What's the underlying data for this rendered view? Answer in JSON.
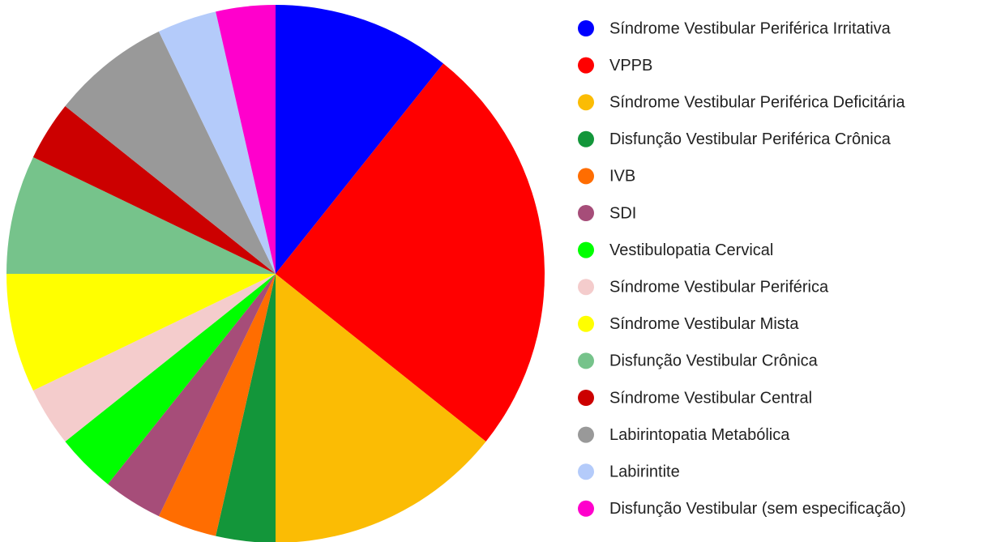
{
  "chart_data": {
    "type": "pie",
    "categories": [
      "Síndrome Vestibular Periférica Irritativa",
      "VPPB",
      "Síndrome Vestibular Periférica Deficitária",
      "Disfunção Vestibular Periférica Crônica",
      "IVB",
      "SDI",
      "Vestibulopatia Cervical",
      "Síndrome Vestibular Periférica",
      "Síndrome Vestibular Mista",
      "Disfunção Vestibular Crônica",
      "Síndrome Vestibular Central",
      "Labirintopatia Metabólica",
      "Labirintite",
      "Disfunção Vestibular (sem especificação)"
    ],
    "values": [
      3,
      7,
      4,
      1,
      1,
      1,
      1,
      1,
      2,
      2,
      1,
      2,
      1,
      1
    ],
    "colors": [
      "#0000ff",
      "#ff0000",
      "#fbbc04",
      "#13963a",
      "#ff6d01",
      "#a64d79",
      "#00ff00",
      "#f4cccc",
      "#ffff00",
      "#76c38b",
      "#cc0000",
      "#999999",
      "#b4cbfa",
      "#ff00cc"
    ],
    "legend": "right"
  }
}
